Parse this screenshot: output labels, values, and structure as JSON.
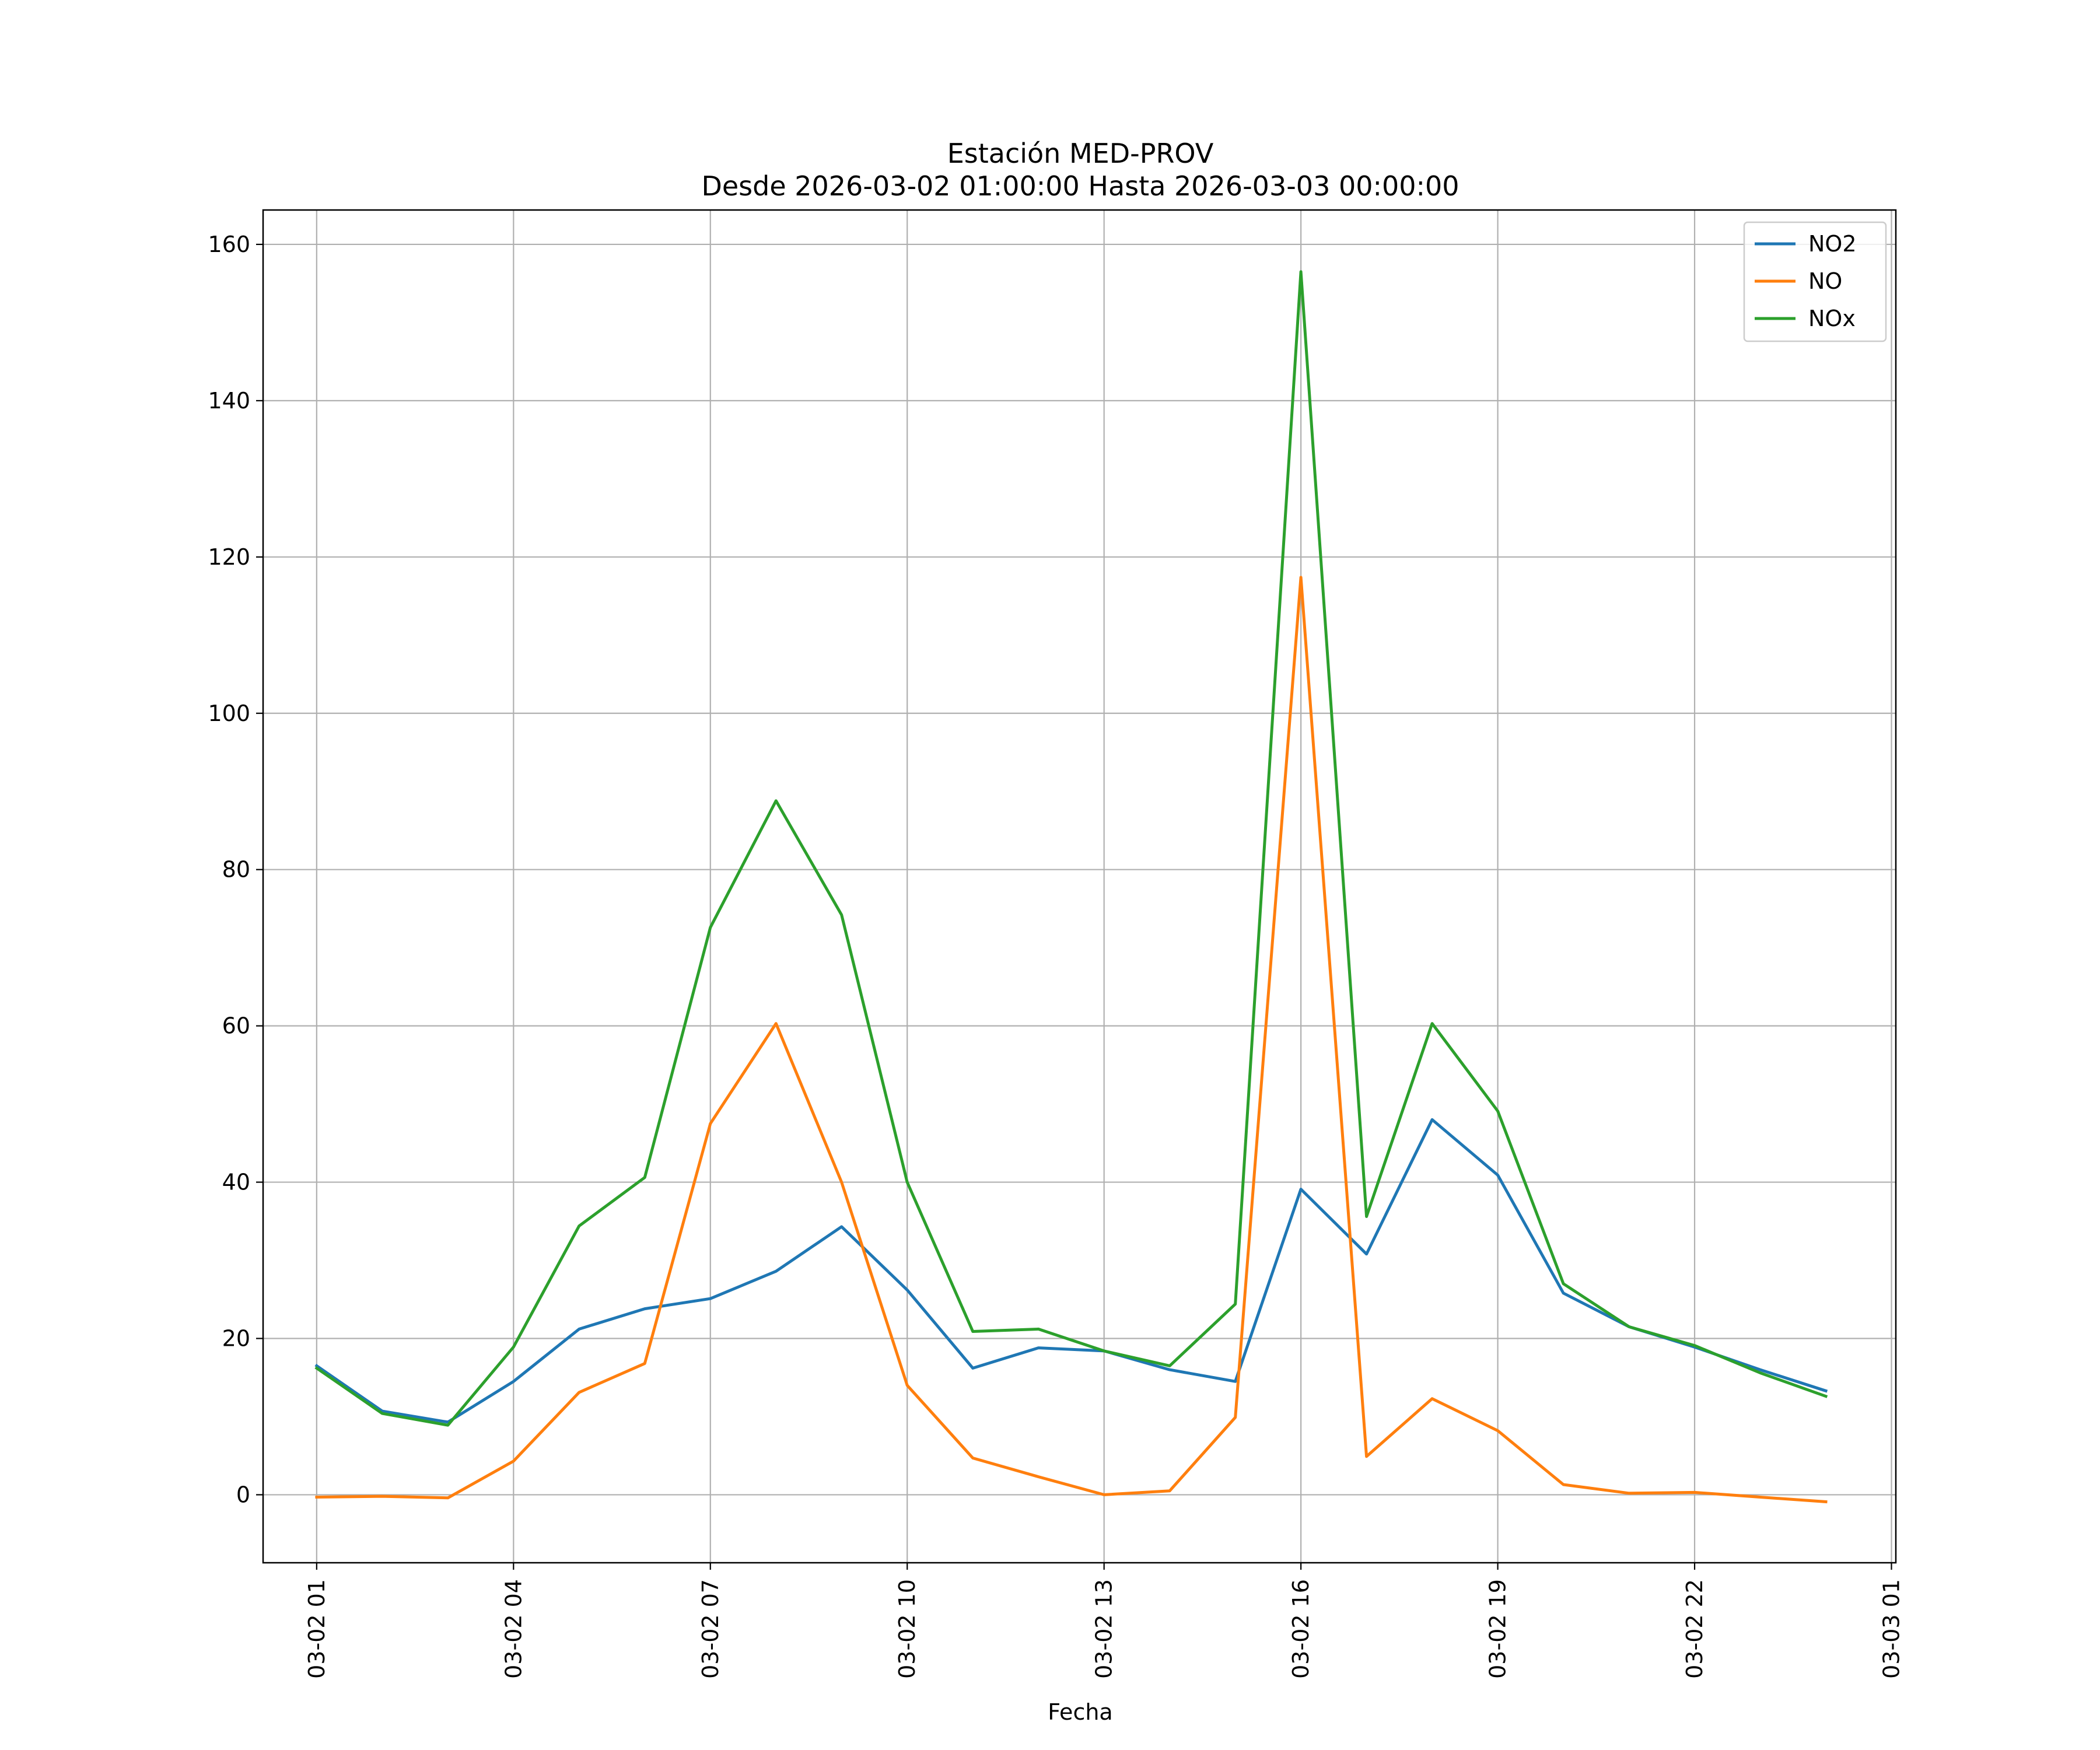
{
  "chart_data": {
    "type": "line",
    "title": "Estación MED-PROV",
    "subtitle": "Desde 2026-03-02 01:00:00 Hasta 2026-03-03 00:00:00",
    "xlabel": "Fecha",
    "ylabel": "",
    "x": [
      "2026-03-02 01:00",
      "2026-03-02 02:00",
      "2026-03-02 03:00",
      "2026-03-02 04:00",
      "2026-03-02 05:00",
      "2026-03-02 06:00",
      "2026-03-02 07:00",
      "2026-03-02 08:00",
      "2026-03-02 09:00",
      "2026-03-02 10:00",
      "2026-03-02 11:00",
      "2026-03-02 12:00",
      "2026-03-02 13:00",
      "2026-03-02 14:00",
      "2026-03-02 15:00",
      "2026-03-02 16:00",
      "2026-03-02 17:00",
      "2026-03-02 18:00",
      "2026-03-02 19:00",
      "2026-03-02 20:00",
      "2026-03-02 21:00",
      "2026-03-02 22:00",
      "2026-03-02 23:00",
      "2026-03-03 00:00"
    ],
    "xlim": [
      "2026-03-02 00:11",
      "2026-03-03 01:04"
    ],
    "x_ticks": [
      "2026-03-02 01:00",
      "2026-03-02 04:00",
      "2026-03-02 07:00",
      "2026-03-02 10:00",
      "2026-03-02 13:00",
      "2026-03-02 16:00",
      "2026-03-02 19:00",
      "2026-03-02 22:00",
      "2026-03-03 01:00"
    ],
    "x_tick_labels": [
      "03-02 01",
      "03-02 04",
      "03-02 07",
      "03-02 10",
      "03-02 13",
      "03-02 16",
      "03-02 19",
      "03-02 22",
      "03-03 01"
    ],
    "ylim": [
      -8.7,
      164.4
    ],
    "y_ticks": [
      0,
      20,
      40,
      60,
      80,
      100,
      120,
      140,
      160
    ],
    "grid": true,
    "legend_position": "top-right",
    "series": [
      {
        "name": "NO2",
        "color": "#1f77b4",
        "values": [
          16.5,
          10.7,
          9.3,
          14.5,
          21.2,
          23.8,
          25.1,
          28.6,
          34.3,
          26.2,
          16.2,
          18.8,
          18.4,
          16.0,
          14.5,
          39.1,
          30.8,
          48.0,
          40.9,
          25.8,
          21.5,
          18.9,
          16.0,
          13.3
        ]
      },
      {
        "name": "NO",
        "color": "#ff7f0e",
        "values": [
          -0.3,
          -0.2,
          -0.4,
          4.3,
          13.1,
          16.8,
          47.5,
          60.3,
          40.0,
          14.0,
          4.7,
          2.3,
          0.0,
          0.5,
          9.9,
          117.4,
          4.9,
          12.3,
          8.2,
          1.3,
          0.2,
          0.3,
          -0.3,
          -0.9
        ]
      },
      {
        "name": "NOx",
        "color": "#2ca02c",
        "values": [
          16.2,
          10.4,
          8.9,
          18.9,
          34.4,
          40.6,
          72.6,
          88.8,
          74.2,
          40.0,
          20.9,
          21.2,
          18.4,
          16.5,
          24.4,
          156.5,
          35.6,
          60.3,
          49.1,
          27.0,
          21.5,
          19.1,
          15.6,
          12.6
        ]
      }
    ]
  }
}
